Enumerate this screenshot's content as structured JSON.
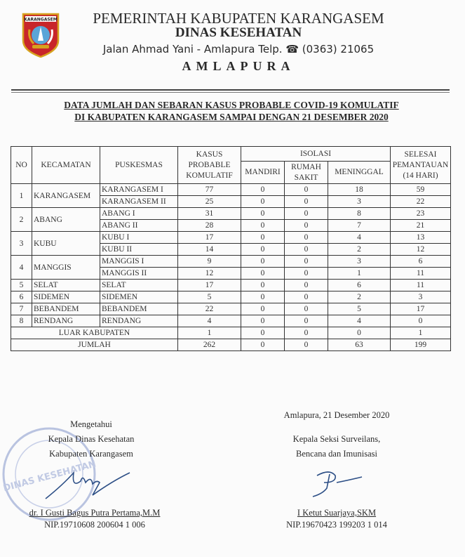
{
  "letterhead": {
    "logo_text": "KARANGASEM",
    "line1": "PEMERINTAH KABUPATEN KARANGASEM",
    "line2": "DINAS KESEHATAN",
    "address": "Jalan Ahmad Yani  - Amlapura Telp. ☎ (0363) 21065",
    "city": "AMLAPURA"
  },
  "title": {
    "line1": "DATA JUMLAH DAN SEBARAN KASUS PROBABLE COVID-19 KOMULATIF",
    "line2": "DI KABUPATEN KARANGASEM SAMPAI DENGAN 21 DESEMBER 2020"
  },
  "table": {
    "headers": {
      "no": "NO",
      "kecamatan": "KECAMATAN",
      "puskesmas": "PUSKESMAS",
      "kasus": "KASUS PROBABLE KOMULATIF",
      "isolasi": "ISOLASI",
      "mandiri": "MANDIRI",
      "rumah_sakit": "RUMAH SAKIT",
      "meninggal": "MENINGGAL",
      "selesai": "SELESAI PEMANTAUAN (14 HARI)"
    },
    "groups": [
      {
        "no": "1",
        "kecamatan": "KARANGASEM",
        "rows": [
          {
            "puskesmas": "KARANGASEM I",
            "kasus": "77",
            "mandiri": "0",
            "rumah_sakit": "0",
            "meninggal": "18",
            "selesai": "59"
          },
          {
            "puskesmas": "KARANGASEM II",
            "kasus": "25",
            "mandiri": "0",
            "rumah_sakit": "0",
            "meninggal": "3",
            "selesai": "22"
          }
        ]
      },
      {
        "no": "2",
        "kecamatan": "ABANG",
        "rows": [
          {
            "puskesmas": "ABANG I",
            "kasus": "31",
            "mandiri": "0",
            "rumah_sakit": "0",
            "meninggal": "8",
            "selesai": "23"
          },
          {
            "puskesmas": "ABANG II",
            "kasus": "28",
            "mandiri": "0",
            "rumah_sakit": "0",
            "meninggal": "7",
            "selesai": "21"
          }
        ]
      },
      {
        "no": "3",
        "kecamatan": "KUBU",
        "rows": [
          {
            "puskesmas": "KUBU I",
            "kasus": "17",
            "mandiri": "0",
            "rumah_sakit": "0",
            "meninggal": "4",
            "selesai": "13"
          },
          {
            "puskesmas": "KUBU II",
            "kasus": "14",
            "mandiri": "0",
            "rumah_sakit": "0",
            "meninggal": "2",
            "selesai": "12"
          }
        ]
      },
      {
        "no": "4",
        "kecamatan": "MANGGIS",
        "rows": [
          {
            "puskesmas": "MANGGIS I",
            "kasus": "9",
            "mandiri": "0",
            "rumah_sakit": "0",
            "meninggal": "3",
            "selesai": "6"
          },
          {
            "puskesmas": "MANGGIS II",
            "kasus": "12",
            "mandiri": "0",
            "rumah_sakit": "0",
            "meninggal": "1",
            "selesai": "11"
          }
        ]
      },
      {
        "no": "5",
        "kecamatan": "SELAT",
        "rows": [
          {
            "puskesmas": "SELAT",
            "kasus": "17",
            "mandiri": "0",
            "rumah_sakit": "0",
            "meninggal": "6",
            "selesai": "11"
          }
        ]
      },
      {
        "no": "6",
        "kecamatan": "SIDEMEN",
        "rows": [
          {
            "puskesmas": "SIDEMEN",
            "kasus": "5",
            "mandiri": "0",
            "rumah_sakit": "0",
            "meninggal": "2",
            "selesai": "3"
          }
        ]
      },
      {
        "no": "7",
        "kecamatan": "BEBANDEM",
        "rows": [
          {
            "puskesmas": "BEBANDEM",
            "kasus": "22",
            "mandiri": "0",
            "rumah_sakit": "0",
            "meninggal": "5",
            "selesai": "17"
          }
        ]
      },
      {
        "no": "8",
        "kecamatan": "RENDANG",
        "rows": [
          {
            "puskesmas": "RENDANG",
            "kasus": "4",
            "mandiri": "0",
            "rumah_sakit": "0",
            "meninggal": "4",
            "selesai": "0"
          }
        ]
      }
    ],
    "totals": [
      {
        "label": "LUAR KABUPATEN",
        "kasus": "1",
        "mandiri": "0",
        "rumah_sakit": "0",
        "meninggal": "0",
        "selesai": "1"
      },
      {
        "label": "JUMLAH",
        "kasus": "262",
        "mandiri": "0",
        "rumah_sakit": "0",
        "meninggal": "63",
        "selesai": "199"
      }
    ]
  },
  "signatures": {
    "left": {
      "line1": "Mengetahui",
      "line2": "Kepala Dinas Kesehatan",
      "line3": "Kabupaten Karangasem",
      "name": "dr. I Gusti Bagus Putra Pertama,M.M",
      "nip": "NIP.19710608 200604 1 006",
      "stamp_text": "PEMERINTAH KABUPATEN KARANGASEM DINAS KESEHATAN"
    },
    "right": {
      "place_date": "Amlapura, 21 Desember 2020",
      "line1": "Kepala Seksi Surveilans,",
      "line2": "Bencana dan Imunisasi",
      "name": "I Ketut Suarjaya,SKM",
      "nip": "NIP.19670423 199203 1 014"
    }
  },
  "colors": {
    "ink": "#2a2a2a",
    "signature": "#2d4f86",
    "stamp": "#b9c3e0",
    "logo_red": "#c8262a",
    "logo_gold": "#d6a21e"
  }
}
